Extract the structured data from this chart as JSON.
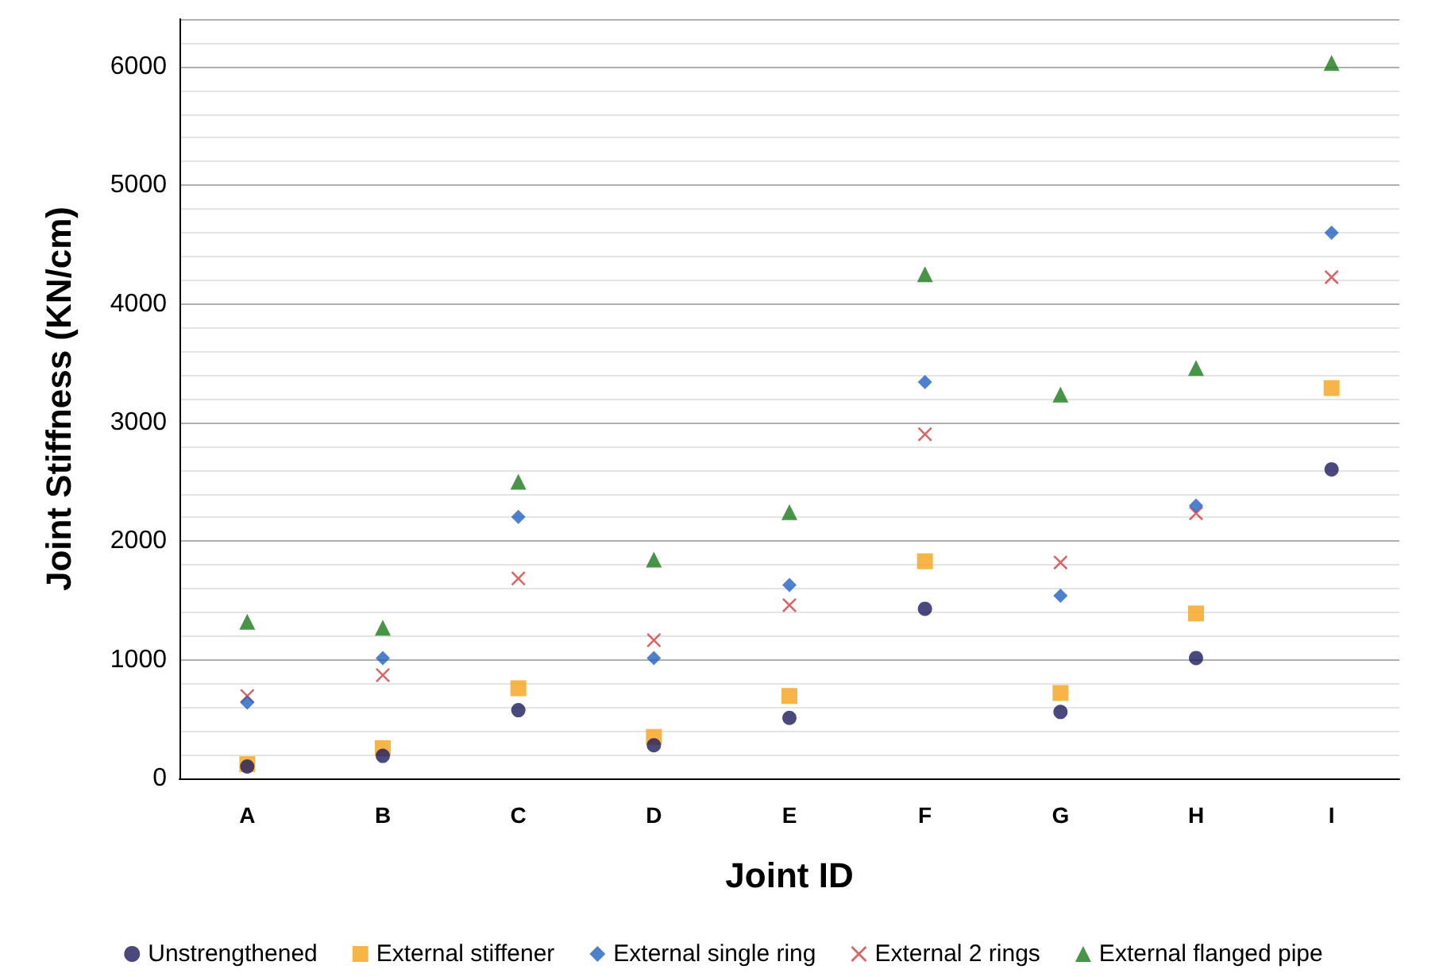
{
  "chart_data": {
    "type": "scatter",
    "xlabel": "Joint ID",
    "ylabel": "Joint Stiffness (KN/cm)",
    "categories": [
      "A",
      "B",
      "C",
      "D",
      "E",
      "F",
      "G",
      "H",
      "I"
    ],
    "series": [
      {
        "name": "Unstrengthened",
        "color": "#1c1c5c",
        "marker": "circle",
        "values": [
          100,
          190,
          575,
          280,
          510,
          1430,
          560,
          1015,
          2605
        ]
      },
      {
        "name": "External stiffener",
        "color": "#f5a31a",
        "marker": "square",
        "values": [
          120,
          255,
          760,
          350,
          695,
          1830,
          720,
          1390,
          3290
        ]
      },
      {
        "name": "External single ring",
        "color": "#2060c0",
        "marker": "diamond",
        "values": [
          640,
          1015,
          2205,
          1015,
          1630,
          3340,
          1540,
          2300,
          4600
        ]
      },
      {
        "name": "External 2 rings",
        "color": "#d04040",
        "marker": "cross",
        "values": [
          695,
          870,
          1685,
          1165,
          1460,
          2900,
          1820,
          2235,
          4225
        ]
      },
      {
        "name": "External flanged pipe",
        "color": "#1a7a1a",
        "marker": "triangle",
        "values": [
          1320,
          1270,
          2500,
          1845,
          2245,
          4250,
          3235,
          3460,
          6030
        ]
      }
    ],
    "ylim": [
      0,
      6400
    ],
    "yticks": [
      0,
      1000,
      2000,
      3000,
      4000,
      5000,
      6000
    ],
    "grid": "y",
    "legend": "bottom"
  }
}
